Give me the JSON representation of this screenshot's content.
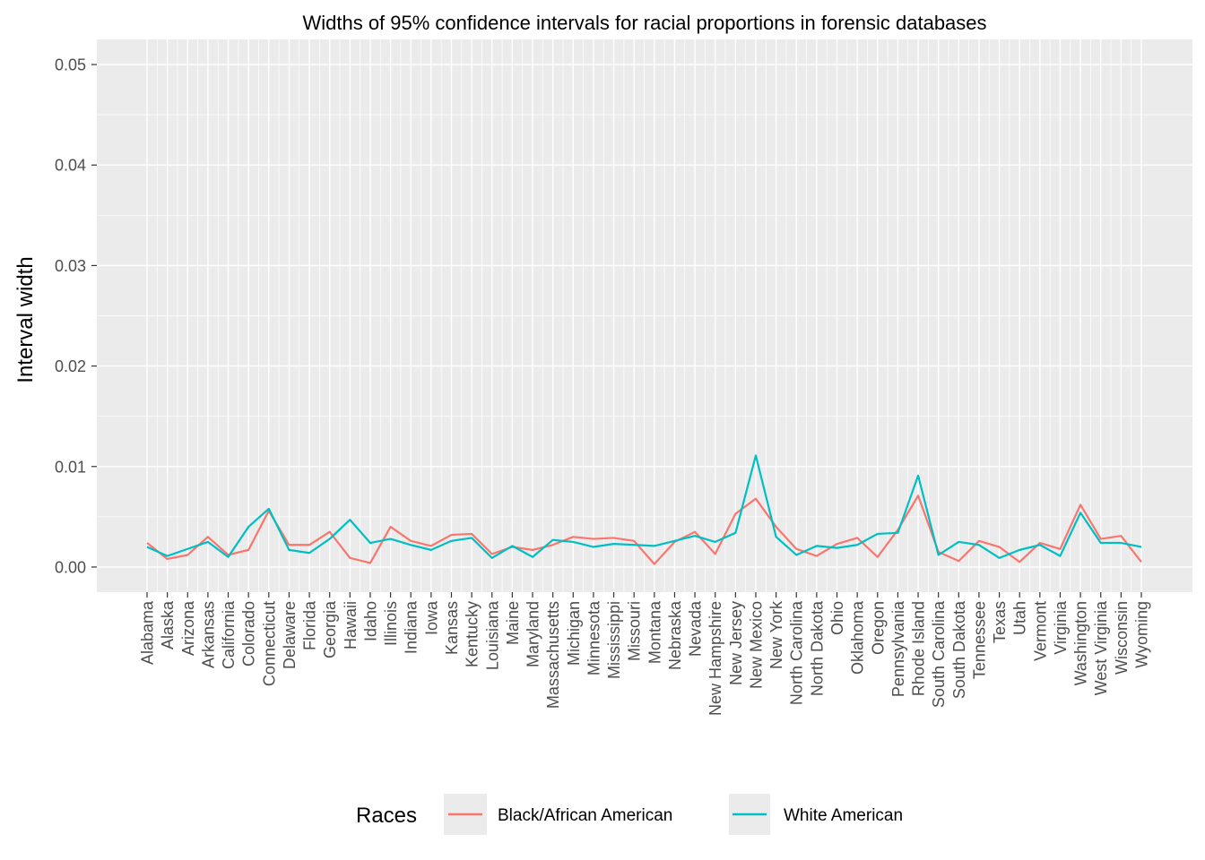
{
  "chart_data": {
    "type": "line",
    "title": "Widths of 95% confidence intervals for racial proportions in forensic databases",
    "xlabel": "",
    "ylabel": "Interval width",
    "ylim": [
      -0.0025,
      0.0525
    ],
    "yticks": [
      0,
      0.01,
      0.02,
      0.03,
      0.04,
      0.05
    ],
    "ytick_labels": [
      "0.00",
      "0.01",
      "0.02",
      "0.03",
      "0.04",
      "0.05"
    ],
    "grid": true,
    "legend": {
      "title": "Races",
      "position": "bottom"
    },
    "categories": [
      "Alabama",
      "Alaska",
      "Arizona",
      "Arkansas",
      "California",
      "Colorado",
      "Connecticut",
      "Delaware",
      "Florida",
      "Georgia",
      "Hawaii",
      "Idaho",
      "Illinois",
      "Indiana",
      "Iowa",
      "Kansas",
      "Kentucky",
      "Louisiana",
      "Maine",
      "Maryland",
      "Massachusetts",
      "Michigan",
      "Minnesota",
      "Mississippi",
      "Missouri",
      "Montana",
      "Nebraska",
      "Nevada",
      "New Hampshire",
      "New Jersey",
      "New Mexico",
      "New York",
      "North Carolina",
      "North Dakota",
      "Ohio",
      "Oklahoma",
      "Oregon",
      "Pennsylvania",
      "Rhode Island",
      "South Carolina",
      "South Dakota",
      "Tennessee",
      "Texas",
      "Utah",
      "Vermont",
      "Virginia",
      "Washington",
      "West Virginia",
      "Wisconsin",
      "Wyoming"
    ],
    "series": [
      {
        "name": "Black/African American",
        "color": "#F8766D",
        "values": [
          0.0024,
          0.0008,
          0.0012,
          0.003,
          0.0012,
          0.0017,
          0.0056,
          0.0022,
          0.0022,
          0.0035,
          0.0009,
          0.0004,
          0.004,
          0.0026,
          0.0021,
          0.0032,
          0.0033,
          0.0013,
          0.002,
          0.0017,
          0.0022,
          0.003,
          0.0028,
          0.0029,
          0.0026,
          0.0003,
          0.0025,
          0.0035,
          0.0013,
          0.0053,
          0.0068,
          0.004,
          0.0018,
          0.0011,
          0.0023,
          0.0029,
          0.001,
          0.0037,
          0.0071,
          0.0015,
          0.0006,
          0.0026,
          0.002,
          0.0005,
          0.0024,
          0.0018,
          0.0062,
          0.0028,
          0.0031,
          0.0005
        ]
      },
      {
        "name": "White American",
        "color": "#00BFC4",
        "values": [
          0.002,
          0.0011,
          0.0018,
          0.0025,
          0.001,
          0.004,
          0.0058,
          0.0017,
          0.0014,
          0.0028,
          0.0047,
          0.0024,
          0.0028,
          0.0022,
          0.0017,
          0.0026,
          0.0029,
          0.0009,
          0.0021,
          0.001,
          0.0027,
          0.0025,
          0.002,
          0.0023,
          0.0022,
          0.0021,
          0.0026,
          0.0031,
          0.0025,
          0.0034,
          0.0111,
          0.003,
          0.0012,
          0.0021,
          0.0019,
          0.0022,
          0.0033,
          0.0034,
          0.0091,
          0.0012,
          0.0025,
          0.0022,
          0.0009,
          0.0017,
          0.0022,
          0.0011,
          0.0054,
          0.0024,
          0.0024,
          0.002
        ]
      }
    ]
  }
}
